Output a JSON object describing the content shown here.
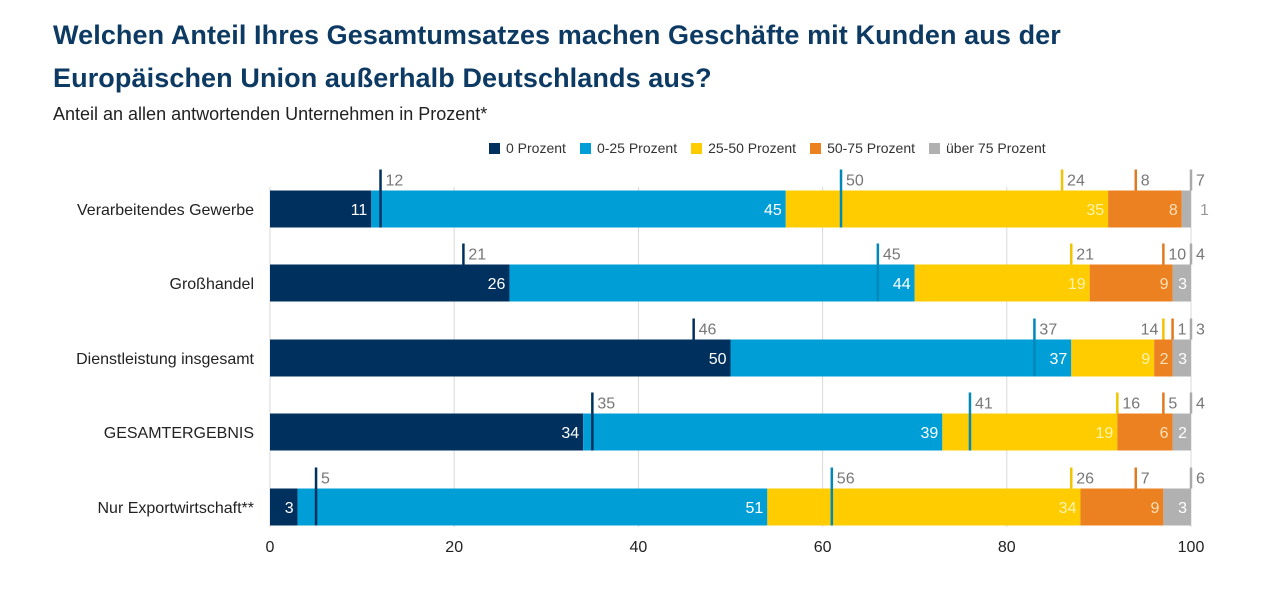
{
  "title_line1": "Welchen Anteil Ihres Gesamtumsatzes machen Geschäfte mit Kunden aus der",
  "title_line2": "Europäischen Union außerhalb Deutschlands aus?",
  "subtitle": "Anteil an allen antwortenden Unternehmen in Prozent*",
  "chart_data": {
    "type": "bar",
    "orientation": "horizontal",
    "stacked": true,
    "title": "Welchen Anteil Ihres Gesamtumsatzes machen Geschäfte mit Kunden aus der Europäischen Union außerhalb Deutschlands aus?",
    "subtitle": "Anteil an allen antwortenden Unternehmen in Prozent*",
    "xlabel": "",
    "ylabel": "",
    "xlim": [
      0,
      100
    ],
    "xticks": [
      0,
      20,
      40,
      60,
      80,
      100
    ],
    "grid": true,
    "legend_position": "top-right",
    "categories": [
      "Verarbeitendes Gewerbe",
      "Großhandel",
      "Dienstleistung insgesamt",
      "GESAMTERGEBNIS",
      "Nur Exportwirtschaft**"
    ],
    "series": [
      {
        "name": "0 Prozent",
        "color": "#00305e",
        "label_color": "#ffffff",
        "values": [
          11,
          26,
          50,
          34,
          3
        ],
        "previous_values": [
          12,
          21,
          46,
          35,
          5
        ],
        "marker_color": "#00305e"
      },
      {
        "name": "0-25 Prozent",
        "color": "#009ed6",
        "label_color": "#ffffff",
        "values": [
          45,
          44,
          37,
          39,
          51
        ],
        "previous_values": [
          50,
          45,
          37,
          41,
          56
        ],
        "marker_color": "#0088b8"
      },
      {
        "name": "25-50 Prozent",
        "color": "#ffcc00",
        "label_color": "#fff3b0",
        "values": [
          35,
          19,
          9,
          19,
          34
        ],
        "previous_values": [
          24,
          21,
          14,
          16,
          26
        ],
        "marker_color": "#f0c400"
      },
      {
        "name": "50-75 Prozent",
        "color": "#ec8121",
        "label_color": "#ffe0b8",
        "values": [
          8,
          9,
          2,
          6,
          9
        ],
        "previous_values": [
          8,
          10,
          1,
          5,
          7
        ],
        "marker_color": "#e07a20"
      },
      {
        "name": "über 75 Prozent",
        "color": "#b1b1b1",
        "label_color": "#ffffff",
        "values": [
          1,
          3,
          3,
          2,
          3
        ],
        "previous_values": [
          7,
          4,
          3,
          4,
          6
        ],
        "marker_color": "#aaaaaa"
      }
    ],
    "annotations": "Vertical tick markers above each bar show the previous survey value (cumulative position) with its number label"
  }
}
